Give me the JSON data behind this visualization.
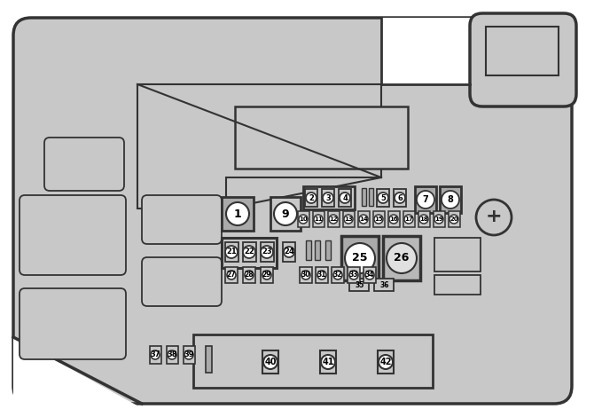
{
  "bg": "#c8c8c8",
  "white": "#ffffff",
  "dark": "#333333",
  "mid": "#aaaaaa",
  "light": "#dddddd",
  "border": "#444444",
  "outer_lw": 2.0
}
